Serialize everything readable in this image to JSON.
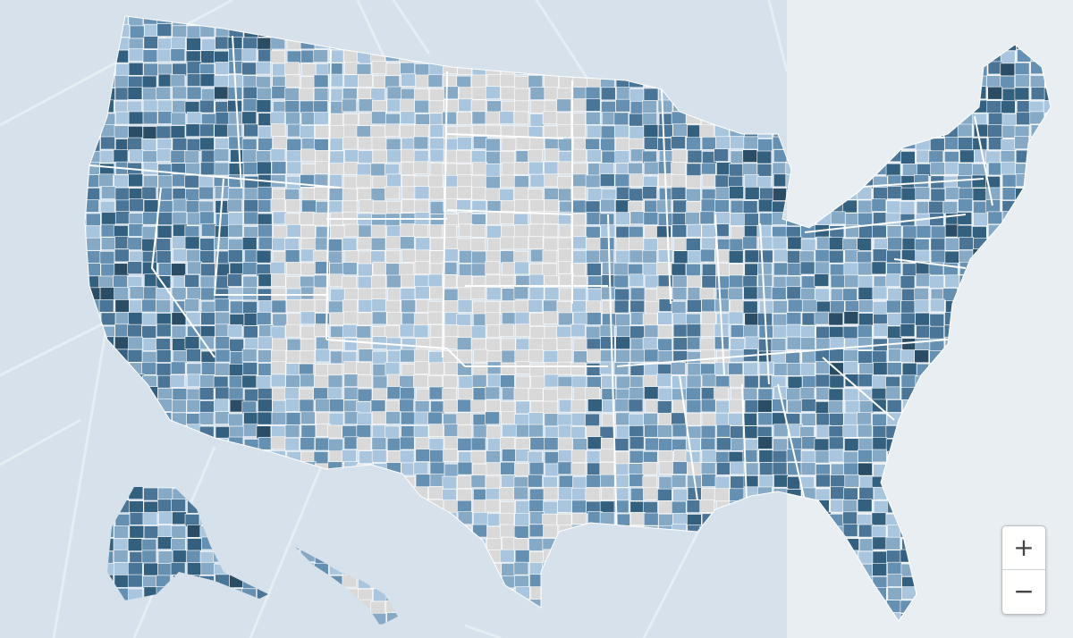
{
  "zoom_controls": {
    "zoom_in": "+",
    "zoom_out": "−"
  }
}
